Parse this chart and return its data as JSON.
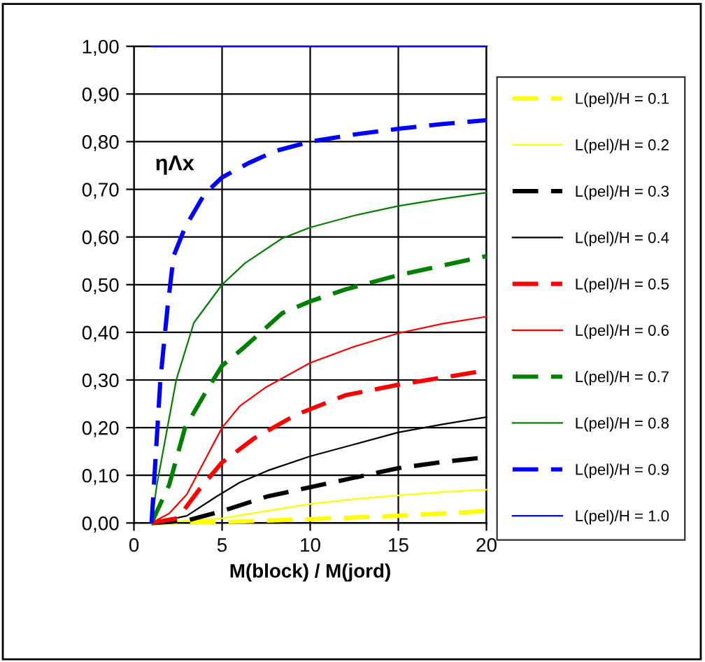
{
  "chart_data": {
    "type": "line",
    "xlabel": "M(block) / M(jord)",
    "annotations": [
      "ηΛx"
    ],
    "xlim": [
      0,
      20
    ],
    "xticks": [
      0,
      5,
      10,
      15,
      20
    ],
    "ylim": [
      0,
      1
    ],
    "yticks": [
      {
        "value": 0,
        "label": "0,00"
      },
      {
        "value": 0.1,
        "label": "0,10"
      },
      {
        "value": 0.2,
        "label": "0,20"
      },
      {
        "value": 0.3,
        "label": "0,30"
      },
      {
        "value": 0.4,
        "label": "0,40"
      },
      {
        "value": 0.5,
        "label": "0,50"
      },
      {
        "value": 0.6,
        "label": "0,60"
      },
      {
        "value": 0.7,
        "label": "0,70"
      },
      {
        "value": 0.8,
        "label": "0,80"
      },
      {
        "value": 0.9,
        "label": "0,90"
      },
      {
        "value": 1,
        "label": "1,00"
      }
    ],
    "grid": true,
    "legend": "right",
    "marker": "none",
    "series": [
      {
        "name": "L(pel)/H = 0.1",
        "color": "#ffff00",
        "line_style": "dashed",
        "x": [
          1,
          5,
          10,
          15,
          20
        ],
        "values": [
          0,
          0.002,
          0.008,
          0.015,
          0.025
        ]
      },
      {
        "name": "L(pel)/H = 0.2",
        "color": "#ffff00",
        "line_style": "solid",
        "x": [
          1,
          5,
          7.5,
          10,
          12.5,
          15,
          17.5,
          20
        ],
        "values": [
          0,
          0.01,
          0.025,
          0.04,
          0.05,
          0.058,
          0.065,
          0.07
        ]
      },
      {
        "name": "L(pel)/H = 0.3",
        "color": "#000000",
        "line_style": "dashed",
        "x": [
          1,
          3,
          5,
          7.6,
          10,
          12.5,
          15,
          17.5,
          20
        ],
        "values": [
          0,
          0.005,
          0.025,
          0.056,
          0.075,
          0.095,
          0.115,
          0.128,
          0.138
        ]
      },
      {
        "name": "L(pel)/H = 0.4",
        "color": "#000000",
        "line_style": "solid",
        "x": [
          1,
          3,
          4.7,
          6,
          7.6,
          10,
          12.5,
          15,
          17.5,
          20
        ],
        "values": [
          0,
          0.015,
          0.056,
          0.085,
          0.11,
          0.14,
          0.165,
          0.19,
          0.207,
          0.222
        ]
      },
      {
        "name": "L(pel)/H = 0.5",
        "color": "#ff0000",
        "line_style": "dashed",
        "x": [
          1,
          2.5,
          3.7,
          5,
          6.8,
          9.2,
          12,
          15,
          17.5,
          20
        ],
        "values": [
          0,
          0.01,
          0.07,
          0.127,
          0.177,
          0.227,
          0.268,
          0.29,
          0.305,
          0.32
        ]
      },
      {
        "name": "L(pel)/H = 0.6",
        "color": "#ff0000",
        "line_style": "solid",
        "x": [
          1,
          2,
          3,
          4,
          5,
          6,
          7.5,
          10,
          12.5,
          15,
          17.5,
          20
        ],
        "values": [
          0,
          0.02,
          0.06,
          0.13,
          0.2,
          0.245,
          0.285,
          0.336,
          0.37,
          0.398,
          0.418,
          0.433
        ]
      },
      {
        "name": "L(pel)/H = 0.7",
        "color": "#008000",
        "line_style": "dashed",
        "x": [
          1,
          2,
          2.9,
          4,
          5,
          6.3,
          8.4,
          10,
          12,
          15,
          17.5,
          20
        ],
        "values": [
          0,
          0.08,
          0.2,
          0.27,
          0.33,
          0.37,
          0.44,
          0.465,
          0.49,
          0.52,
          0.54,
          0.56
        ]
      },
      {
        "name": "L(pel)/H = 0.8",
        "color": "#008000",
        "line_style": "solid",
        "x": [
          1,
          1.3,
          1.9,
          2.4,
          3.4,
          5,
          6.3,
          8.4,
          10,
          12.5,
          15,
          17.5,
          20
        ],
        "values": [
          0,
          0.08,
          0.2,
          0.3,
          0.42,
          0.5,
          0.545,
          0.597,
          0.62,
          0.645,
          0.665,
          0.68,
          0.693
        ]
      },
      {
        "name": "L(pel)/H = 0.9",
        "color": "#0000ff",
        "line_style": "dashed",
        "x": [
          1,
          1.2,
          1.5,
          1.9,
          2.25,
          2.9,
          4,
          5,
          6.5,
          8,
          10,
          12.5,
          15,
          17.5,
          20
        ],
        "values": [
          0,
          0.12,
          0.3,
          0.45,
          0.56,
          0.62,
          0.69,
          0.725,
          0.755,
          0.78,
          0.8,
          0.815,
          0.827,
          0.837,
          0.845
        ]
      },
      {
        "name": "L(pel)/H = 1.0",
        "color": "#0000ff",
        "line_style": "solid",
        "x": [
          1,
          20
        ],
        "values": [
          1,
          1
        ]
      }
    ]
  }
}
